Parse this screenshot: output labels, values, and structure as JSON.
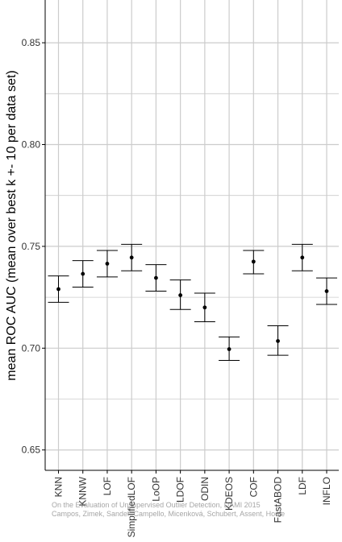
{
  "chart_data": {
    "type": "errorbar",
    "categories": [
      "KNN",
      "KNNW",
      "LOF",
      "SimplifiedLOF",
      "LoOP",
      "LDOF",
      "ODIN",
      "KDEOS",
      "COF",
      "FastABOD",
      "LDF",
      "INFLO"
    ],
    "values": [
      0.729,
      0.7365,
      0.7415,
      0.7445,
      0.7345,
      0.726,
      0.72,
      0.6995,
      0.7425,
      0.7035,
      0.7445,
      0.728
    ],
    "lower": [
      0.7225,
      0.73,
      0.735,
      0.738,
      0.728,
      0.719,
      0.713,
      0.694,
      0.7365,
      0.6965,
      0.738,
      0.7215
    ],
    "upper": [
      0.7355,
      0.743,
      0.748,
      0.751,
      0.741,
      0.7335,
      0.727,
      0.7055,
      0.748,
      0.711,
      0.751,
      0.7345
    ],
    "ylabel": "mean ROC AUC (mean over best k +- 10 per data set)",
    "xlabel": "",
    "ylim": [
      0.64,
      0.871
    ],
    "yticks": [
      0.65,
      0.7,
      0.75,
      0.8,
      0.85
    ],
    "ytick_labels": [
      "0.65",
      "0.70",
      "0.75",
      "0.80",
      "0.85"
    ],
    "grid": true,
    "colors": {
      "background": "#ffffff",
      "grid": "#cccccc",
      "mark": "#000000",
      "axis": "#000000"
    },
    "watermark": [
      "On the Evaluation of Unsupervised Outlier Detection, DAMI 2015",
      "Campos, Zimek, Sander, Campello, Micenková, Schubert, Assent, Houle"
    ]
  }
}
